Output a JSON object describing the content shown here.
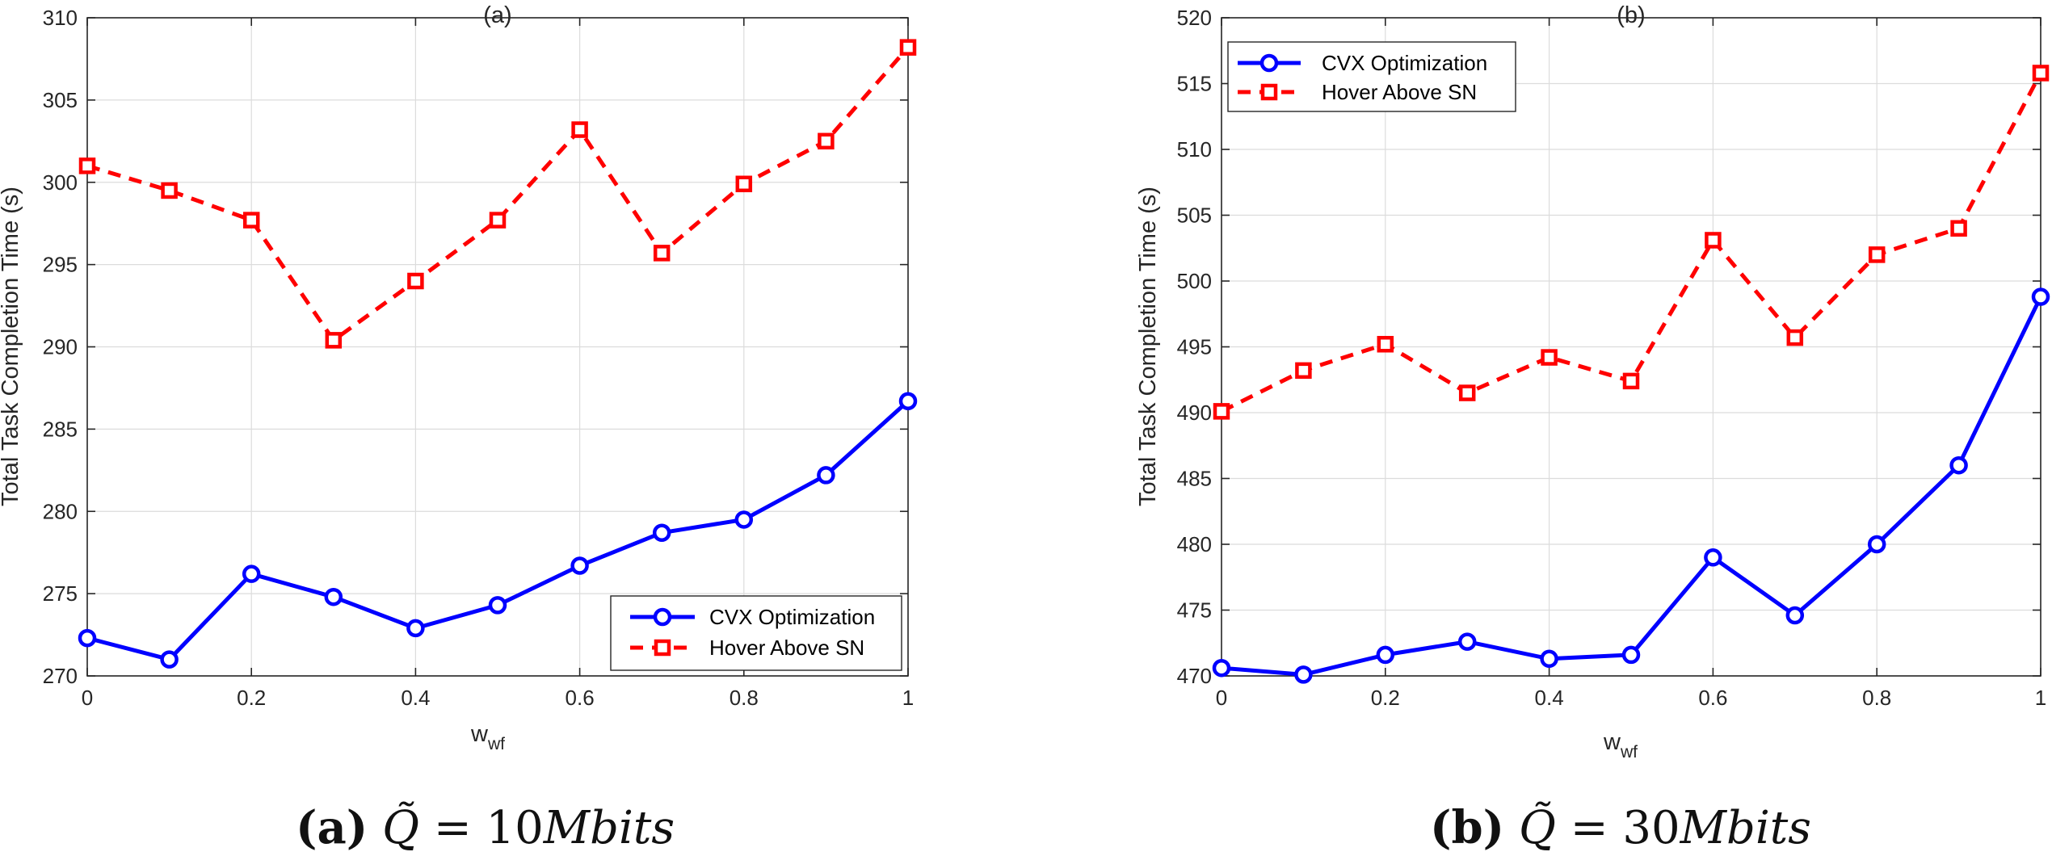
{
  "chart_data": [
    {
      "type": "line",
      "panel": "a",
      "title": "(a)",
      "xlabel": "w",
      "xlabel_sub": "wf",
      "ylabel": "Total Task Completion Time (s)",
      "xlim": [
        0,
        1
      ],
      "ylim": [
        270,
        310
      ],
      "xticks": [
        0,
        0.2,
        0.4,
        0.6,
        0.8,
        1
      ],
      "xtick_labels": [
        "0",
        "0.2",
        "0.4",
        "0.6",
        "0.8",
        "1"
      ],
      "yticks": [
        270,
        275,
        280,
        285,
        290,
        295,
        300,
        305,
        310
      ],
      "grid": true,
      "legend_location": "bottom-right",
      "x": [
        0,
        0.1,
        0.2,
        0.3,
        0.4,
        0.5,
        0.6,
        0.7,
        0.8,
        0.9,
        1.0
      ],
      "series": [
        {
          "name": "CVX Optimization",
          "color": "#0000ff",
          "line": "solid",
          "marker": "circle",
          "values": [
            272.3,
            271.0,
            276.2,
            274.8,
            272.9,
            274.3,
            276.7,
            278.7,
            279.5,
            282.2,
            286.7
          ]
        },
        {
          "name": "Hover Above SN",
          "color": "#ff0000",
          "line": "dashed",
          "marker": "square",
          "values": [
            301.0,
            299.5,
            297.7,
            290.4,
            294.0,
            297.7,
            303.2,
            295.7,
            299.9,
            302.5,
            308.2
          ]
        }
      ],
      "caption": {
        "label": "(a)",
        "q_symbol": "Q̃",
        "eq": " = 10",
        "unit": "Mbits"
      }
    },
    {
      "type": "line",
      "panel": "b",
      "title": "(b)",
      "xlabel": "w",
      "xlabel_sub": "wf",
      "ylabel": "Total Task Completion Time (s)",
      "xlim": [
        0,
        1
      ],
      "ylim": [
        470,
        520
      ],
      "xticks": [
        0,
        0.2,
        0.4,
        0.6,
        0.8,
        1
      ],
      "xtick_labels": [
        "0",
        "0.2",
        "0.4",
        "0.6",
        "0.8",
        "1"
      ],
      "yticks": [
        470,
        475,
        480,
        485,
        490,
        495,
        500,
        505,
        510,
        515,
        520
      ],
      "grid": true,
      "legend_location": "top-left",
      "x": [
        0,
        0.1,
        0.2,
        0.3,
        0.4,
        0.5,
        0.6,
        0.7,
        0.8,
        0.9,
        1.0
      ],
      "series": [
        {
          "name": "CVX Optimization",
          "color": "#0000ff",
          "line": "solid",
          "marker": "circle",
          "values": [
            470.6,
            470.1,
            471.6,
            472.6,
            471.3,
            471.6,
            479.0,
            474.6,
            480.0,
            486.0,
            498.8
          ]
        },
        {
          "name": "Hover Above SN",
          "color": "#ff0000",
          "line": "dashed",
          "marker": "square",
          "values": [
            490.1,
            493.2,
            495.2,
            491.5,
            494.2,
            492.4,
            503.1,
            495.7,
            502.0,
            504.0,
            515.8
          ]
        }
      ],
      "caption": {
        "label": "(b)",
        "q_symbol": "Q̃",
        "eq": " = 30",
        "unit": "Mbits"
      }
    }
  ]
}
